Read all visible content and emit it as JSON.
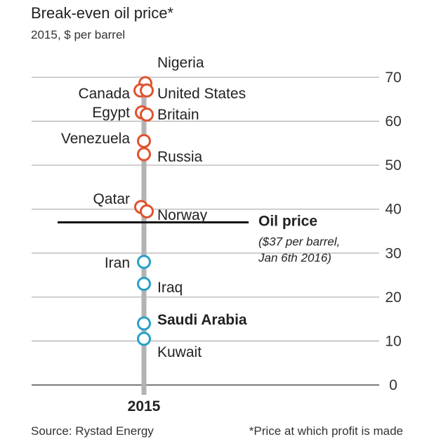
{
  "title": "Break-even oil price*",
  "subtitle": "2015, $ per barrel",
  "source": "Source: Rystad Energy",
  "footnote": "*Price at which profit is made",
  "colors": {
    "high": "#e0522e",
    "low": "#2aa0c7",
    "axis": "#b3b3b3",
    "grid": "#b3b3b3",
    "oil_line": "#111111"
  },
  "chart_data": {
    "type": "scatter",
    "title": "Break-even oil price*",
    "subtitle": "2015, $ per barrel",
    "xlabel": "2015",
    "ylabel": "$ per barrel",
    "ylim": [
      0,
      70
    ],
    "yticks": [
      0,
      10,
      20,
      30,
      40,
      50,
      60,
      70
    ],
    "points": [
      {
        "name": "Nigeria",
        "value": 68.5,
        "side": "right",
        "color_group": "high",
        "bold": false
      },
      {
        "name": "Canada",
        "value": 67,
        "side": "left",
        "color_group": "high",
        "bold": false
      },
      {
        "name": "United States",
        "value": 67,
        "side": "right",
        "color_group": "high",
        "bold": false
      },
      {
        "name": "Egypt",
        "value": 62,
        "side": "left",
        "color_group": "high",
        "bold": false
      },
      {
        "name": "Britain",
        "value": 61.5,
        "side": "right",
        "color_group": "high",
        "bold": false
      },
      {
        "name": "Venezuela",
        "value": 55.5,
        "side": "left",
        "color_group": "high",
        "bold": false
      },
      {
        "name": "Russia",
        "value": 52.5,
        "side": "right",
        "color_group": "high",
        "bold": false
      },
      {
        "name": "Qatar",
        "value": 40.5,
        "side": "left",
        "color_group": "high",
        "bold": false
      },
      {
        "name": "Norway",
        "value": 39.5,
        "side": "right",
        "color_group": "high",
        "bold": false
      },
      {
        "name": "Iran",
        "value": 28,
        "side": "left",
        "color_group": "low",
        "bold": false
      },
      {
        "name": "Iraq",
        "value": 23,
        "side": "right",
        "color_group": "low",
        "bold": false
      },
      {
        "name": "Saudi Arabia",
        "value": 14,
        "side": "right",
        "color_group": "low",
        "bold": true
      },
      {
        "name": "Kuwait",
        "value": 10.5,
        "side": "right",
        "color_group": "low",
        "bold": false
      }
    ],
    "reference_line": {
      "value": 37,
      "label": "Oil price",
      "note_lines": [
        "($37 per barrel,",
        "Jan 6th 2016)"
      ]
    },
    "grid": true
  }
}
